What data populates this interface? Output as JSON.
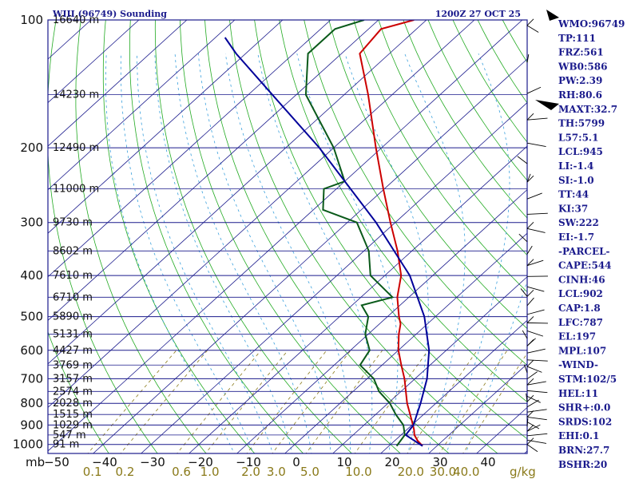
{
  "chart_data": {
    "type": "line",
    "title_left": "WIII (96749) Sounding",
    "title_right": "1200Z 27 OCT 25",
    "xunit": "mb",
    "mix_unit": "g/kg",
    "pressure_levels": [
      1000,
      900,
      800,
      700,
      600,
      500,
      400,
      300,
      200,
      100
    ],
    "temperature_ticks": [
      -50,
      -40,
      -30,
      -20,
      -10,
      0,
      10,
      20,
      30,
      40
    ],
    "mixing_ratio_labels": [
      "0.1",
      "0.2",
      "0.6",
      "1.0",
      "2.0",
      "3.0",
      "5.0",
      "10.0",
      "20.0",
      "30.0",
      "40.0"
    ],
    "heights": [
      {
        "p": 100,
        "label": "16640 m"
      },
      {
        "p": 150,
        "label": "14230 m"
      },
      {
        "p": 200,
        "label": "12490 m"
      },
      {
        "p": 250,
        "label": "11000 m"
      },
      {
        "p": 300,
        "label": "9730 m"
      },
      {
        "p": 350,
        "label": "8602 m"
      },
      {
        "p": 400,
        "label": "7610 m"
      },
      {
        "p": 450,
        "label": "6710 m"
      },
      {
        "p": 500,
        "label": "5890 m"
      },
      {
        "p": 550,
        "label": "5131 m"
      },
      {
        "p": 600,
        "label": "4427 m"
      },
      {
        "p": 650,
        "label": "3769 m"
      },
      {
        "p": 700,
        "label": "3157 m"
      },
      {
        "p": 750,
        "label": "2574 m"
      },
      {
        "p": 800,
        "label": "2028 m"
      },
      {
        "p": 850,
        "label": "1515 m"
      },
      {
        "p": 900,
        "label": "1029 m"
      },
      {
        "p": 950,
        "label": "547 m"
      },
      {
        "p": 1000,
        "label": "91 m"
      }
    ],
    "series": [
      {
        "color": "#cc0000",
        "points": [
          {
            "p": 1008,
            "t": 27.0
          },
          {
            "p": 980,
            "t": 24.8
          },
          {
            "p": 950,
            "t": 22.8
          },
          {
            "p": 925,
            "t": 21.6
          },
          {
            "p": 900,
            "t": 20.2
          },
          {
            "p": 850,
            "t": 17.2
          },
          {
            "p": 800,
            "t": 14.0
          },
          {
            "p": 750,
            "t": 11.0
          },
          {
            "p": 700,
            "t": 7.8
          },
          {
            "p": 650,
            "t": 4.0
          },
          {
            "p": 600,
            "t": 0.0
          },
          {
            "p": 550,
            "t": -3.6
          },
          {
            "p": 520,
            "t": -5.6
          },
          {
            "p": 500,
            "t": -7.6
          },
          {
            "p": 450,
            "t": -12.4
          },
          {
            "p": 400,
            "t": -16.6
          },
          {
            "p": 350,
            "t": -23.0
          },
          {
            "p": 300,
            "t": -31.0
          },
          {
            "p": 250,
            "t": -40.2
          },
          {
            "p": 200,
            "t": -51.2
          },
          {
            "p": 150,
            "t": -65.0
          },
          {
            "p": 120,
            "t": -76.2
          },
          {
            "p": 105,
            "t": -77.4
          },
          {
            "p": 100,
            "t": -72.6
          }
        ]
      },
      {
        "color": "#0a5a1a",
        "points": [
          {
            "p": 1008,
            "t": 21.6
          },
          {
            "p": 950,
            "t": 20.8
          },
          {
            "p": 900,
            "t": 18.2
          },
          {
            "p": 850,
            "t": 14.2
          },
          {
            "p": 800,
            "t": 10.4
          },
          {
            "p": 750,
            "t": 5.4
          },
          {
            "p": 700,
            "t": 1.4
          },
          {
            "p": 650,
            "t": -4.6
          },
          {
            "p": 600,
            "t": -6.0
          },
          {
            "p": 550,
            "t": -10.6
          },
          {
            "p": 500,
            "t": -14.0
          },
          {
            "p": 470,
            "t": -18.0
          },
          {
            "p": 450,
            "t": -13.4
          },
          {
            "p": 400,
            "t": -23.0
          },
          {
            "p": 350,
            "t": -29.0
          },
          {
            "p": 300,
            "t": -38.0
          },
          {
            "p": 280,
            "t": -48.0
          },
          {
            "p": 250,
            "t": -52.6
          },
          {
            "p": 240,
            "t": -50.0
          },
          {
            "p": 200,
            "t": -60.0
          },
          {
            "p": 150,
            "t": -78.0
          },
          {
            "p": 120,
            "t": -87.0
          },
          {
            "p": 105,
            "t": -87.0
          },
          {
            "p": 100,
            "t": -83.0
          }
        ]
      },
      {
        "color": "#00009a",
        "points": [
          {
            "p": 1008,
            "t": 27.0
          },
          {
            "p": 950,
            "t": 21.0
          },
          {
            "p": 900,
            "t": 20.3
          },
          {
            "p": 850,
            "t": 18.6
          },
          {
            "p": 800,
            "t": 16.8
          },
          {
            "p": 700,
            "t": 12.5
          },
          {
            "p": 600,
            "t": 6.4
          },
          {
            "p": 500,
            "t": -2.3
          },
          {
            "p": 400,
            "t": -14.8
          },
          {
            "p": 300,
            "t": -34.0
          },
          {
            "p": 200,
            "t": -63.0
          },
          {
            "p": 150,
            "t": -85.0
          },
          {
            "p": 120,
            "t": -102.0
          },
          {
            "p": 110,
            "t": -108.0
          }
        ]
      }
    ]
  },
  "indices": [
    "WMO:96749",
    "TP:111",
    "FRZ:561",
    "WB0:586",
    "PW:2.39",
    "RH:80.6",
    "MAXT:32.7",
    "TH:5799",
    "L57:5.1",
    "LCL:945",
    "LI:-1.4",
    "SI:-1.0",
    "TT:44",
    "KI:37",
    "SW:222",
    "EI:-1.7",
    "-PARCEL-",
    "CAPE:544",
    "CINH:46",
    "LCL:902",
    "CAP:1.8",
    "LFC:787",
    "EL:197",
    "MPL:107",
    "-WIND-",
    "STM:102/5",
    "HEL:11",
    "SHR+:0.0",
    "SRDS:102",
    "EHI:0.1",
    "BRN:27.7",
    "BSHR:20"
  ],
  "colors": {
    "frame": "#1a1a8c",
    "isobar": "#1a1a8c",
    "isotherm": "#1a1a8c",
    "dry_adiabat": "#22aa22",
    "moist_adiabat": "#3aa0dd",
    "mixing_ratio": "#8a7a1a"
  }
}
